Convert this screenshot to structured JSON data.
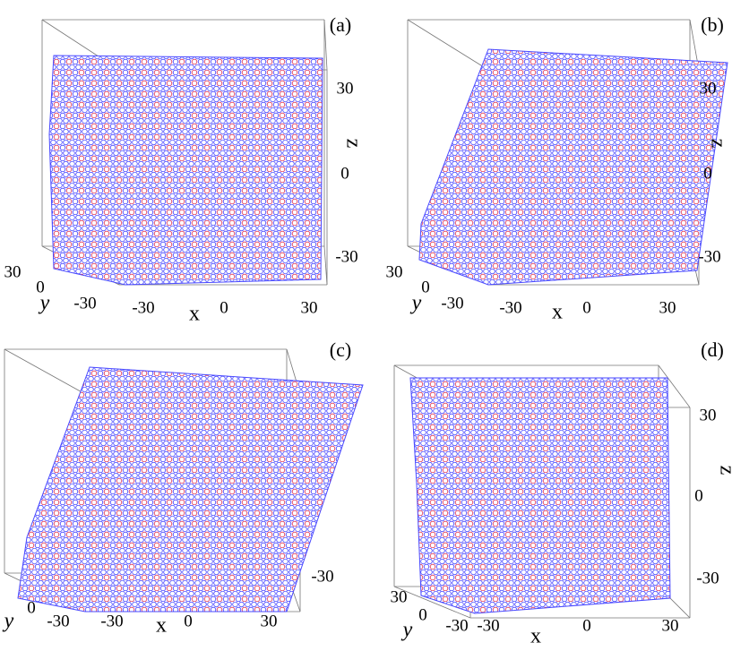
{
  "panels": [
    {
      "label": "(a)",
      "x_label": "x",
      "y_label": "y",
      "z_label": "z",
      "x_ticks": [
        -30,
        0,
        30
      ],
      "y_ticks": [
        30,
        0,
        -30
      ],
      "z_ticks": [
        30,
        0,
        -30
      ]
    },
    {
      "label": "(b)",
      "x_label": "x",
      "y_label": "y",
      "z_label": "z",
      "x_ticks": [
        -30,
        0,
        30
      ],
      "y_ticks": [
        30,
        0,
        -30
      ],
      "z_ticks": [
        30,
        0,
        -30
      ]
    },
    {
      "label": "(c)",
      "x_label": "x",
      "y_label": "y",
      "x_ticks": [
        -30,
        0,
        30
      ],
      "y_ticks": [
        0,
        -30
      ],
      "z_ticks": [
        -30
      ]
    },
    {
      "label": "(d)",
      "x_label": "x",
      "y_label": "y",
      "z_label": "z",
      "x_ticks": [
        -30,
        0,
        30
      ],
      "y_ticks": [
        30,
        0,
        -30
      ],
      "z_ticks": [
        30,
        0,
        -30
      ]
    }
  ]
}
